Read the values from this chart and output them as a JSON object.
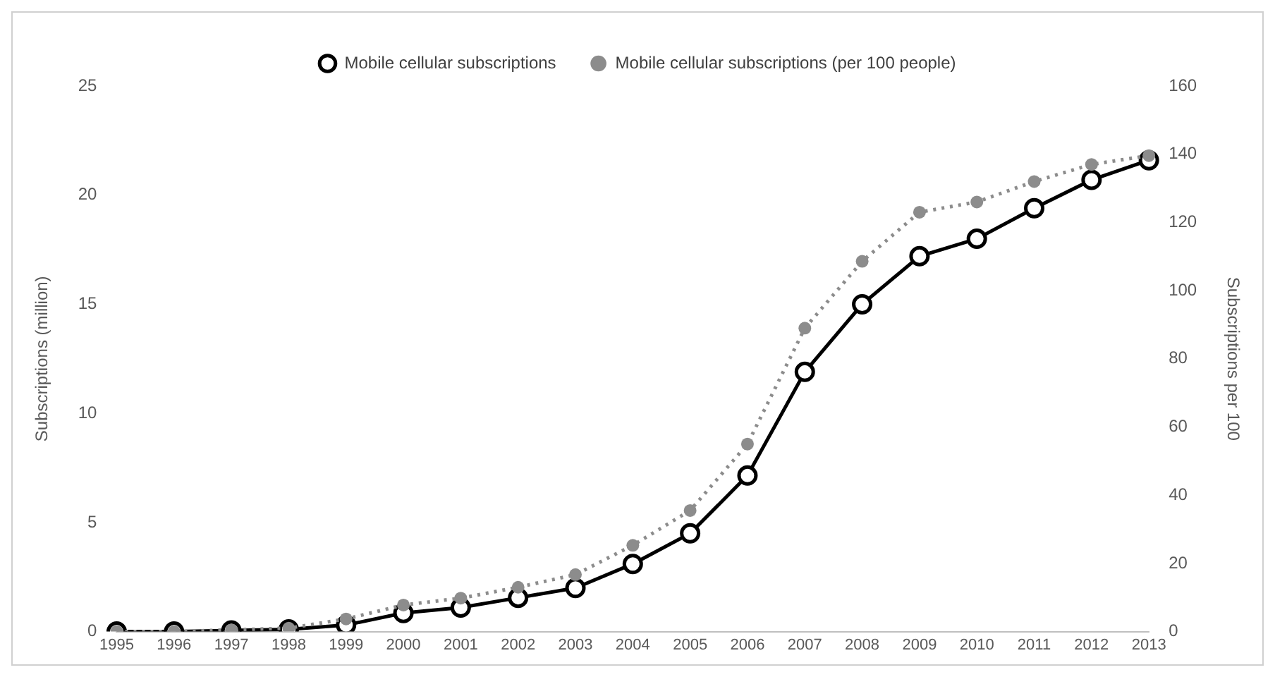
{
  "chart_data": {
    "type": "line",
    "categories": [
      "1995",
      "1996",
      "1997",
      "1998",
      "1999",
      "2000",
      "2001",
      "2002",
      "2003",
      "2004",
      "2005",
      "2006",
      "2007",
      "2008",
      "2009",
      "2010",
      "2011",
      "2012",
      "2013"
    ],
    "ylabel": "Subscriptions (million)",
    "y2label": "Subscriptions per 100",
    "ylim": [
      0,
      25
    ],
    "yticks": [
      0,
      5,
      10,
      15,
      20,
      25
    ],
    "y2lim": [
      0,
      160
    ],
    "y2ticks": [
      0,
      20,
      40,
      60,
      80,
      100,
      120,
      140,
      160
    ],
    "grid": false,
    "legend": "top",
    "series": [
      {
        "name": "Mobile cellular subscriptions",
        "color": "#000000",
        "axis": "y",
        "marker": "circle",
        "line_style": "solid",
        "values": [
          0,
          0,
          0.05,
          0.1,
          0.3,
          0.85,
          1.1,
          1.55,
          2.0,
          3.1,
          4.5,
          7.15,
          11.9,
          15.0,
          17.2,
          18.0,
          19.4,
          20.7,
          21.6
        ]
      },
      {
        "name": "Mobile cellular subscriptions (per 100 people)",
        "color": "#8c8c8c",
        "axis": "y2",
        "marker": "circle",
        "line_style": "dotted",
        "values": [
          0,
          0,
          0.5,
          1,
          3.7,
          7.8,
          9.8,
          13,
          16.7,
          25.3,
          35.5,
          55,
          89,
          108.6,
          123,
          126,
          132,
          137,
          139.6
        ]
      }
    ]
  }
}
